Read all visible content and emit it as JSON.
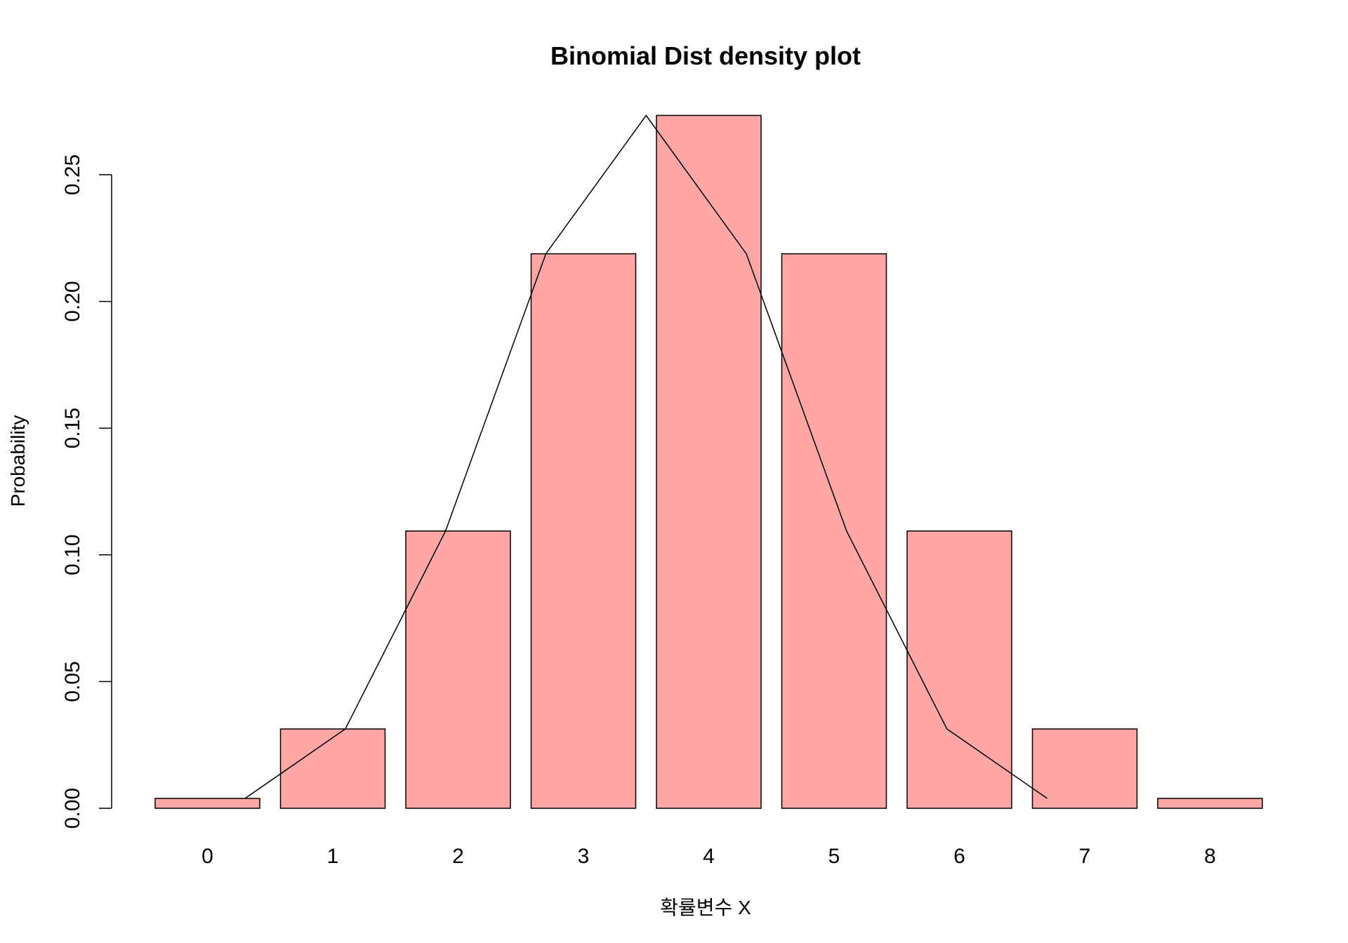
{
  "chart_data": {
    "type": "bar",
    "title": "Binomial Dist density plot",
    "xlabel": "확률변수 X",
    "ylabel": "Probability",
    "categories": [
      "0",
      "1",
      "2",
      "3",
      "4",
      "5",
      "6",
      "7",
      "8"
    ],
    "values": [
      0.0039,
      0.0313,
      0.1094,
      0.2188,
      0.2734,
      0.2188,
      0.1094,
      0.0313,
      0.0039
    ],
    "bar_color": "#ffa6a6",
    "line_series": {
      "x": [
        0.3,
        1.1,
        1.9,
        2.7,
        3.5,
        4.3,
        5.1,
        5.9,
        6.7
      ],
      "y": [
        0.0039,
        0.0313,
        0.1094,
        0.2188,
        0.2734,
        0.2188,
        0.1094,
        0.0313,
        0.0039
      ]
    },
    "ylim": [
      0,
      0.25
    ],
    "yticks": [
      "0.00",
      "0.05",
      "0.10",
      "0.15",
      "0.20",
      "0.25"
    ],
    "grid": false,
    "legend": "none"
  }
}
